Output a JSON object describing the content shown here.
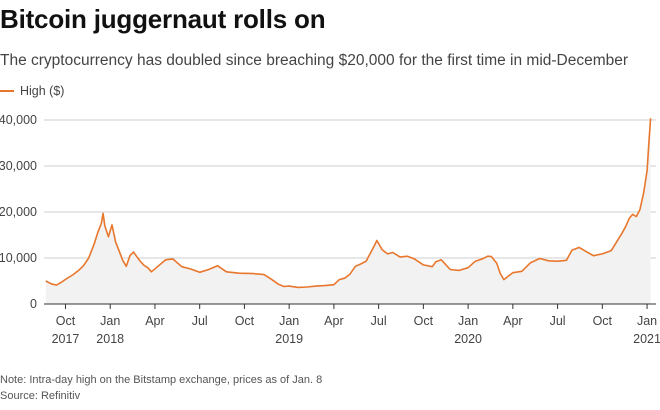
{
  "header": {
    "title": "Bitcoin juggernaut rolls on",
    "subtitle": "The cryptocurrency has doubled since breaching $20,000 for the first time in mid-December"
  },
  "footer": {
    "note": "Note: Intra-day high on the Bitstamp exchange, prices as of Jan. 8",
    "source": "Source: Refinitiv"
  },
  "colors": {
    "line": "#e8772e",
    "area": "#f2f2f2",
    "grid": "#bfbfbf",
    "axis": "#333333"
  },
  "chart_data": {
    "type": "area",
    "title": "Bitcoin juggernaut rolls on",
    "subtitle": "The cryptocurrency has doubled since breaching $20,000 for the first time in mid-December",
    "xlabel": "",
    "ylabel": "",
    "ylim": [
      0,
      40000
    ],
    "xlim": [
      2017.63,
      2021.05
    ],
    "grid": true,
    "legend_position": "top-left",
    "y_ticks": [
      {
        "value": 0,
        "label": "0"
      },
      {
        "value": 10000,
        "label": "10,000"
      },
      {
        "value": 20000,
        "label": "20,000"
      },
      {
        "value": 30000,
        "label": "30,000"
      },
      {
        "value": 40000,
        "label": "40,000"
      }
    ],
    "x_ticks": [
      {
        "value": 2017.75,
        "label": "Oct",
        "year": "2017"
      },
      {
        "value": 2018.0,
        "label": "Jan",
        "year": "2018"
      },
      {
        "value": 2018.25,
        "label": "Apr",
        "year": ""
      },
      {
        "value": 2018.5,
        "label": "Jul",
        "year": ""
      },
      {
        "value": 2018.75,
        "label": "Oct",
        "year": ""
      },
      {
        "value": 2019.0,
        "label": "Jan",
        "year": "2019"
      },
      {
        "value": 2019.25,
        "label": "Apr",
        "year": ""
      },
      {
        "value": 2019.5,
        "label": "Jul",
        "year": ""
      },
      {
        "value": 2019.75,
        "label": "Oct",
        "year": ""
      },
      {
        "value": 2020.0,
        "label": "Jan",
        "year": "2020"
      },
      {
        "value": 2020.25,
        "label": "Apr",
        "year": ""
      },
      {
        "value": 2020.5,
        "label": "Jul",
        "year": ""
      },
      {
        "value": 2020.75,
        "label": "Oct",
        "year": ""
      },
      {
        "value": 2021.0,
        "label": "Jan",
        "year": "2021"
      }
    ],
    "series": [
      {
        "name": "High ($)",
        "x": [
          2017.64,
          2017.67,
          2017.7,
          2017.73,
          2017.76,
          2017.79,
          2017.82,
          2017.85,
          2017.88,
          2017.91,
          2017.93,
          2017.95,
          2017.96,
          2017.97,
          2017.99,
          2018.01,
          2018.03,
          2018.05,
          2018.07,
          2018.09,
          2018.11,
          2018.13,
          2018.15,
          2018.17,
          2018.19,
          2018.21,
          2018.23,
          2018.27,
          2018.31,
          2018.35,
          2018.4,
          2018.45,
          2018.5,
          2018.55,
          2018.6,
          2018.65,
          2018.72,
          2018.8,
          2018.86,
          2018.9,
          2018.94,
          2018.97,
          2019.0,
          2019.05,
          2019.1,
          2019.15,
          2019.2,
          2019.25,
          2019.28,
          2019.31,
          2019.34,
          2019.37,
          2019.4,
          2019.43,
          2019.46,
          2019.48,
          2019.49,
          2019.52,
          2019.55,
          2019.58,
          2019.62,
          2019.66,
          2019.7,
          2019.75,
          2019.8,
          2019.82,
          2019.85,
          2019.9,
          2019.95,
          2020.0,
          2020.04,
          2020.08,
          2020.11,
          2020.13,
          2020.16,
          2020.18,
          2020.2,
          2020.25,
          2020.3,
          2020.35,
          2020.4,
          2020.45,
          2020.5,
          2020.55,
          2020.58,
          2020.62,
          2020.66,
          2020.7,
          2020.75,
          2020.8,
          2020.83,
          2020.86,
          2020.88,
          2020.9,
          2020.92,
          2020.94,
          2020.96,
          2020.98,
          2021.0,
          2021.01,
          2021.02
        ],
        "values": [
          5000,
          4400,
          4100,
          4800,
          5600,
          6300,
          7200,
          8300,
          10000,
          13000,
          15500,
          17500,
          19700,
          17000,
          14600,
          17200,
          13500,
          11500,
          9500,
          8200,
          10500,
          11300,
          10200,
          9200,
          8400,
          7900,
          7000,
          8300,
          9600,
          9800,
          8100,
          7600,
          6900,
          7500,
          8300,
          7000,
          6700,
          6600,
          6400,
          5400,
          4300,
          3800,
          3900,
          3600,
          3700,
          3900,
          4000,
          4200,
          5300,
          5600,
          6500,
          8200,
          8700,
          9300,
          11500,
          13000,
          13800,
          11800,
          10900,
          11200,
          10200,
          10400,
          9800,
          8500,
          8100,
          9200,
          9600,
          7500,
          7300,
          7900,
          9300,
          9800,
          10400,
          10300,
          8900,
          6600,
          5300,
          6800,
          7100,
          9000,
          9900,
          9400,
          9300,
          9500,
          11700,
          12300,
          11400,
          10500,
          10900,
          11600,
          13500,
          15400,
          16800,
          18600,
          19500,
          19000,
          20500,
          24000,
          29000,
          34800,
          40400
        ]
      }
    ]
  }
}
